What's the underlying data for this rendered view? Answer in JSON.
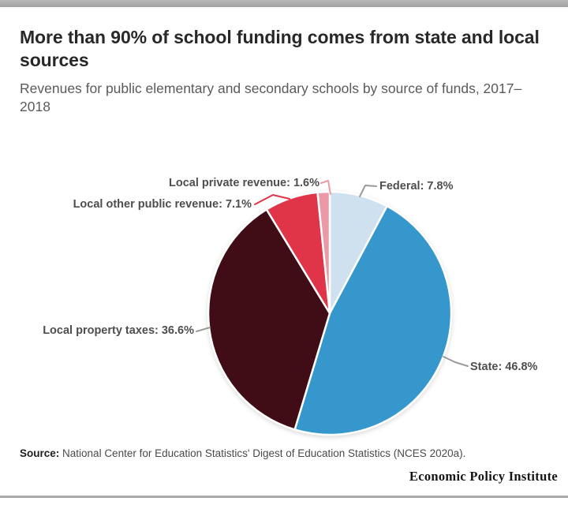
{
  "page": {
    "background": "#ffffff",
    "top_bar_color": "#aeaeae",
    "divider_color": "#a9a9a9"
  },
  "chart_data": {
    "type": "pie",
    "title": "More than 90% of school funding comes from state and local sources",
    "subtitle": "Revenues for public elementary and secondary schools by source of funds, 2017–2018",
    "label_format": "{label}: {value}%",
    "start_angle_deg": 0,
    "direction": "clockwise",
    "legend": "none",
    "slices": [
      {
        "label": "Federal",
        "value": 7.8,
        "color": "#cfe1ee",
        "connector_color": "#9a9a9a"
      },
      {
        "label": "State",
        "value": 46.8,
        "color": "#3597cc",
        "connector_color": "#9a9a9a"
      },
      {
        "label": "Local property taxes",
        "value": 36.6,
        "color": "#400d14",
        "connector_color": "#9a9a9a"
      },
      {
        "label": "Local other public revenue",
        "value": 7.1,
        "color": "#e03449",
        "connector_color": "#e03449"
      },
      {
        "label": "Local private revenue",
        "value": 1.6,
        "color": "#eb99a7",
        "connector_color": "#eb99a7"
      }
    ]
  },
  "source": {
    "label": "Source:",
    "text": "National Center for Education Statistics' Digest of Education Statistics (NCES 2020a)."
  },
  "branding": {
    "wordmark": "Economic Policy Institute"
  }
}
